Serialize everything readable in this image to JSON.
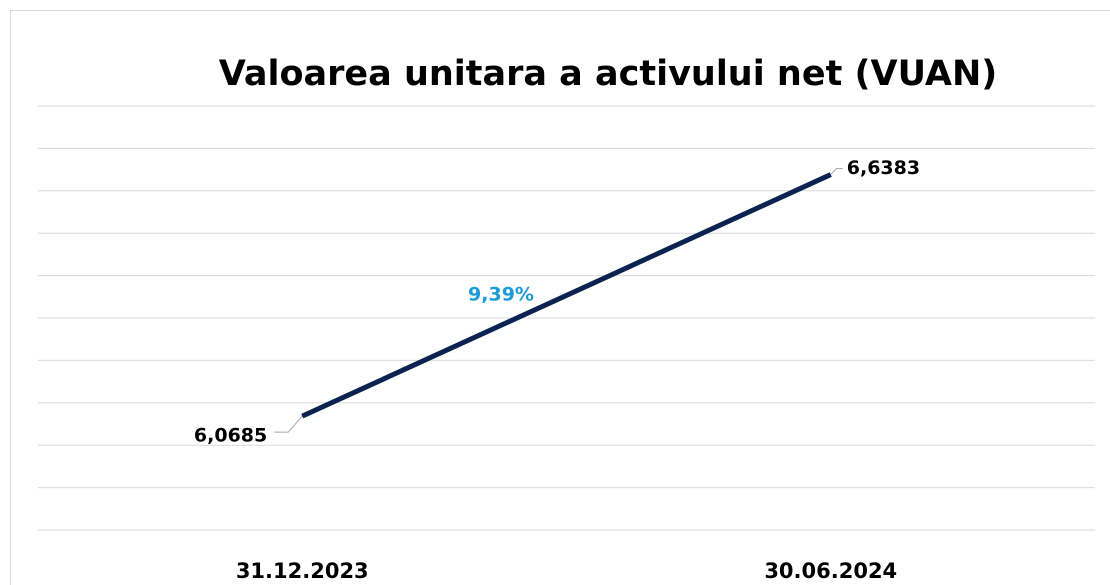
{
  "chart_data": {
    "type": "line",
    "title": "Valoarea unitara a activului net (VUAN)",
    "categories": [
      "31.12.2023",
      "30.06.2024"
    ],
    "series": [
      {
        "name": null,
        "color": "#0b2350",
        "values": [
          6.0685,
          6.6383
        ],
        "value_labels": [
          "6,0685",
          "6,6383"
        ]
      }
    ],
    "annotations": [
      "9,39%"
    ],
    "annotation_color": "#1b9bd7",
    "ylim": [
      5.8,
      6.8
    ],
    "yticks": [
      5.8,
      5.9,
      6.0,
      6.1,
      6.2,
      6.3,
      6.4,
      6.5,
      6.6,
      6.7,
      6.8
    ],
    "grid": true
  }
}
